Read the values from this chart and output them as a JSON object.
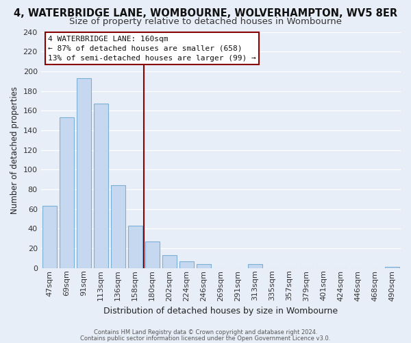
{
  "title": "4, WATERBRIDGE LANE, WOMBOURNE, WOLVERHAMPTON, WV5 8ER",
  "subtitle": "Size of property relative to detached houses in Wombourne",
  "xlabel": "Distribution of detached houses by size in Wombourne",
  "ylabel": "Number of detached properties",
  "bar_labels": [
    "47sqm",
    "69sqm",
    "91sqm",
    "113sqm",
    "136sqm",
    "158sqm",
    "180sqm",
    "202sqm",
    "224sqm",
    "246sqm",
    "269sqm",
    "291sqm",
    "313sqm",
    "335sqm",
    "357sqm",
    "379sqm",
    "401sqm",
    "424sqm",
    "446sqm",
    "468sqm",
    "490sqm"
  ],
  "bar_values": [
    63,
    153,
    193,
    167,
    84,
    43,
    27,
    13,
    7,
    4,
    0,
    0,
    4,
    0,
    0,
    0,
    0,
    0,
    0,
    0,
    1
  ],
  "bar_color": "#c5d8f0",
  "bar_edge_color": "#7bafd4",
  "ylim": [
    0,
    240
  ],
  "yticks": [
    0,
    20,
    40,
    60,
    80,
    100,
    120,
    140,
    160,
    180,
    200,
    220,
    240
  ],
  "vline_x": 5.5,
  "vline_color": "#8b0000",
  "annotation_title": "4 WATERBRIDGE LANE: 160sqm",
  "annotation_line1": "← 87% of detached houses are smaller (658)",
  "annotation_line2": "13% of semi-detached houses are larger (99) →",
  "annotation_box_facecolor": "#ffffff",
  "annotation_box_edgecolor": "#8b0000",
  "footer_line1": "Contains HM Land Registry data © Crown copyright and database right 2024.",
  "footer_line2": "Contains public sector information licensed under the Open Government Licence v3.0.",
  "background_color": "#e8eef8",
  "plot_background": "#e8eef8",
  "grid_color": "#ffffff",
  "title_fontsize": 10.5,
  "subtitle_fontsize": 9.5,
  "tick_labelsize": 8,
  "ylabel_fontsize": 8.5,
  "xlabel_fontsize": 9
}
